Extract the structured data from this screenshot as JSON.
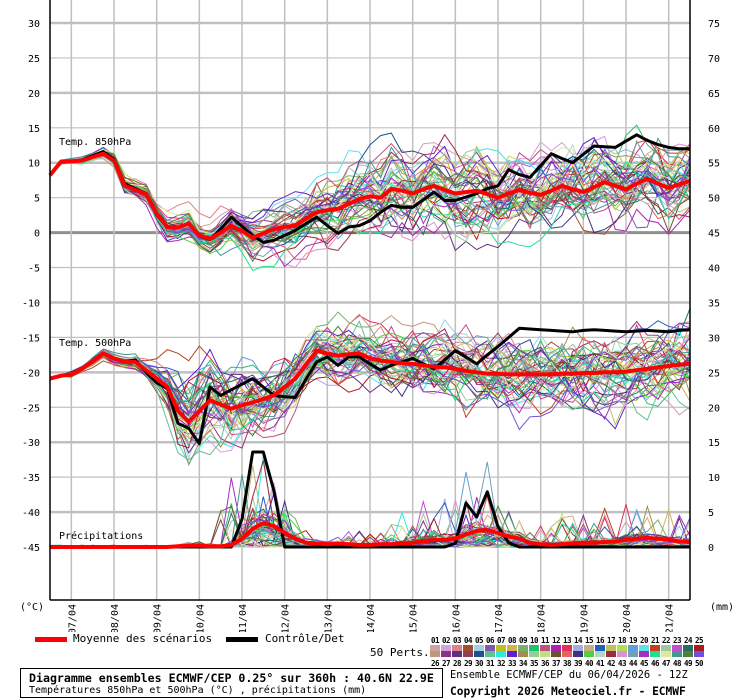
{
  "chart_data": {
    "type": "line",
    "title": "Diagramme ensembles ECMWF/CEP 0.25° sur 360h : 40.6N 22.9E",
    "subtitle": "Températures 850hPa et 500hPa (°C) , précipitations (mm)",
    "left_unit": "(°C)",
    "right_unit": "(mm)",
    "left_ylim": [
      -45,
      30
    ],
    "right_ylim": [
      0,
      75
    ],
    "left_ticks": [
      30,
      25,
      20,
      15,
      10,
      5,
      0,
      -5,
      -10,
      -15,
      -20,
      -25,
      -30,
      -35,
      -40,
      -45
    ],
    "right_ticks": [
      75,
      70,
      65,
      60,
      55,
      50,
      45,
      40,
      35,
      30,
      25,
      20,
      15,
      10,
      5,
      0
    ],
    "x_step_hours": 6,
    "x_range_hours": [
      0,
      360
    ],
    "x_tick_labels": [
      "07/04",
      "08/04",
      "09/04",
      "10/04",
      "11/04",
      "12/04",
      "13/04",
      "14/04",
      "15/04",
      "16/04",
      "17/04",
      "18/04",
      "19/04",
      "20/04",
      "21/04"
    ],
    "grid": true,
    "panels": [
      {
        "label": "Temp. 850hPa",
        "unit": "°C",
        "mean": [
          8.2,
          10.1,
          10.2,
          10.3,
          10.8,
          11.3,
          10.3,
          6.7,
          6.1,
          5.5,
          2.7,
          0.8,
          0.7,
          1.3,
          -0.4,
          -0.9,
          0,
          1,
          0.2,
          -0.7,
          -0.1,
          0.5,
          0.8,
          1,
          2,
          2.9,
          3.2,
          3.4,
          4.1,
          4.8,
          5.2,
          5,
          6.25,
          6,
          5.6,
          6.2,
          6.7,
          6.1,
          5.6,
          5.8,
          6,
          5.5,
          5,
          5.6,
          6.1,
          5.7,
          5.4,
          6,
          6.7,
          6.2,
          5.8,
          6.5,
          7.2,
          6.7,
          6.2,
          7,
          7.7,
          7,
          6.4,
          6.9,
          7.4
        ],
        "control": [
          8.2,
          10.1,
          10.2,
          10.4,
          11,
          11.6,
          10.5,
          7,
          6.3,
          5.6,
          2.5,
          0.8,
          0.7,
          1.3,
          -0.5,
          -1,
          0.5,
          2.2,
          0.9,
          -0.4,
          -1.4,
          -1.1,
          -0.4,
          0.3,
          1.3,
          2.2,
          1,
          -0.1,
          0.8,
          1,
          1.7,
          2.9,
          3.9,
          3.6,
          3.6,
          4.7,
          5.8,
          4.6,
          4.6,
          5.1,
          5.6,
          6.3,
          6.7,
          9,
          8.3,
          7.9,
          9.6,
          11.3,
          10.6,
          10,
          11.2,
          12.4,
          12.3,
          12.2,
          13.1,
          14,
          13.2,
          12.6,
          12.2,
          12,
          12
        ],
        "spread": [
          0.1,
          0.2,
          0.2,
          0.3,
          0.3,
          0.4,
          0.5,
          0.6,
          0.6,
          0.7,
          0.8,
          0.9,
          1,
          1.1,
          1.1,
          1.2,
          1.3,
          1.4,
          1.5,
          1.6,
          1.7,
          1.8,
          1.9,
          2,
          2.1,
          2.2,
          2.3,
          2.4,
          2.5,
          2.5,
          2.6,
          2.6,
          2.7,
          2.7,
          2.7,
          2.8
        ]
      },
      {
        "label": "Temp. 500hPa",
        "unit": "°C",
        "mean": [
          -20.9,
          -20.5,
          -20.3,
          -19.5,
          -18.4,
          -17.3,
          -18,
          -18.5,
          -18.5,
          -19.7,
          -20.9,
          -22.1,
          -25.5,
          -27.1,
          -25.5,
          -24,
          -24.6,
          -25.2,
          -24.7,
          -24.3,
          -23.8,
          -23.3,
          -22.1,
          -20.9,
          -18.9,
          -16.9,
          -17.3,
          -17.6,
          -17.4,
          -17.3,
          -18,
          -18.3,
          -18.5,
          -18.7,
          -18.8,
          -19,
          -19.2,
          -19.3,
          -19.5,
          -19.8,
          -20,
          -20.2,
          -20.2,
          -20.3,
          -20.3,
          -20.3,
          -20.3,
          -20.3,
          -20.2,
          -20.2,
          -20.1,
          -20.1,
          -20,
          -20,
          -19.9,
          -19.7,
          -19.5,
          -19.3,
          -19.1,
          -18.9,
          -18.8
        ],
        "control": [
          -20.9,
          -20.5,
          -20.3,
          -19.5,
          -18.4,
          -17.3,
          -18,
          -18.5,
          -18.2,
          -20,
          -21.5,
          -22.3,
          -27.3,
          -28,
          -30.2,
          -22.1,
          -23.3,
          -22.5,
          -21.7,
          -20.9,
          -22.1,
          -23.3,
          -23.5,
          -23.6,
          -21,
          -18.5,
          -17.8,
          -19,
          -17.8,
          -17.8,
          -18.8,
          -19.7,
          -19,
          -18.5,
          -18,
          -18.8,
          -19.5,
          -18.2,
          -16.9,
          -17.8,
          -18.8,
          -17.5,
          -16.3,
          -15,
          -13.7,
          -13.8,
          -13.9,
          -14,
          -14.1,
          -14.2,
          -14,
          -13.9,
          -14,
          -14.1,
          -14.2,
          -14.1,
          -14,
          -14.1,
          -14.2,
          -14,
          -13.9
        ],
        "spread": [
          0.1,
          0.1,
          0.2,
          0.2,
          0.3,
          0.3,
          0.4,
          0.4,
          0.5,
          0.6,
          1,
          1.5,
          2.5,
          3,
          3.2,
          3.2,
          3.2,
          3.2,
          3,
          3,
          2.8,
          2.6,
          2.4,
          2.2,
          2,
          2,
          2,
          2,
          2,
          2.1,
          2.1,
          2.2,
          2.2,
          2.3,
          2.3,
          2.4,
          2.4,
          2.5,
          2.5,
          2.6,
          2.6,
          2.7,
          2.7,
          2.8
        ]
      },
      {
        "label": "Précipitations",
        "unit": "mm",
        "mean": [
          0,
          0,
          0,
          0,
          0,
          0,
          0,
          0,
          0,
          0,
          0,
          0,
          0.1,
          0.2,
          0.2,
          0.1,
          0.1,
          0.3,
          1.2,
          2.6,
          3.4,
          3,
          2,
          1.2,
          0.6,
          0.5,
          0.4,
          0.5,
          0.4,
          0.3,
          0.3,
          0.4,
          0.4,
          0.5,
          0.6,
          0.8,
          1,
          1,
          1.2,
          1.8,
          2.3,
          2.4,
          2,
          1.5,
          1.2,
          0.6,
          0.4,
          0.3,
          0.4,
          0.5,
          0.6,
          0.6,
          0.7,
          0.8,
          1,
          1.2,
          1.3,
          1.2,
          1,
          0.8,
          0.7
        ],
        "control": [
          0,
          0,
          0,
          0,
          0,
          0,
          0,
          0,
          0,
          0,
          0,
          0,
          0,
          0,
          0,
          0,
          0,
          0,
          4,
          13.6,
          13.6,
          8,
          0,
          0,
          0,
          0,
          0,
          0,
          0,
          0,
          0,
          0,
          0,
          0,
          0,
          0,
          0,
          0,
          0.5,
          6.3,
          4.3,
          7.9,
          2.9,
          0.6,
          0,
          0,
          0,
          0,
          0,
          0,
          0,
          0,
          0,
          0,
          0,
          0,
          0,
          0,
          0,
          0,
          0
        ],
        "spread": [
          0.3,
          0.3,
          0.3,
          0.3,
          0.3,
          0.3,
          0.3,
          0.3,
          0.3,
          0.3,
          0.3,
          0.3,
          0.5,
          0.5,
          0.5,
          0.5,
          6,
          10,
          12,
          12,
          12,
          10,
          8,
          4,
          2,
          2,
          2,
          2,
          2,
          2,
          2,
          2,
          3,
          5,
          6,
          7,
          8,
          8,
          8,
          8,
          8,
          7,
          6,
          6,
          5,
          5,
          5,
          5,
          5,
          5,
          5,
          5,
          5,
          6,
          6,
          6,
          6,
          5,
          5,
          5,
          5
        ]
      }
    ],
    "legend": {
      "mean_label": "Moyenne des scénarios",
      "control_label": "Contrôle/Det",
      "perts_label": "50 Perts.",
      "mean_color": "#ff0000",
      "control_color": "#000000"
    },
    "members": [
      {
        "id": "01",
        "color": "#d0a0a8"
      },
      {
        "id": "02",
        "color": "#d0a0e0"
      },
      {
        "id": "03",
        "color": "#e08088"
      },
      {
        "id": "04",
        "color": "#a05030"
      },
      {
        "id": "05",
        "color": "#a0d0e8"
      },
      {
        "id": "06",
        "color": "#8058b0"
      },
      {
        "id": "07",
        "color": "#c0c020"
      },
      {
        "id": "08",
        "color": "#d8b050"
      },
      {
        "id": "09",
        "color": "#78b070"
      },
      {
        "id": "10",
        "color": "#20c070"
      },
      {
        "id": "11",
        "color": "#c05080"
      },
      {
        "id": "12",
        "color": "#b020b0"
      },
      {
        "id": "13",
        "color": "#e03060"
      },
      {
        "id": "14",
        "color": "#a0b0e0"
      },
      {
        "id": "15",
        "color": "#c8b080"
      },
      {
        "id": "16",
        "color": "#2060c0"
      },
      {
        "id": "17",
        "color": "#c0c060"
      },
      {
        "id": "18",
        "color": "#b0e050"
      },
      {
        "id": "19",
        "color": "#60a0d8"
      },
      {
        "id": "20",
        "color": "#60e0e8"
      },
      {
        "id": "21",
        "color": "#c04020"
      },
      {
        "id": "22",
        "color": "#a0c8a0"
      },
      {
        "id": "23",
        "color": "#c050d0"
      },
      {
        "id": "24",
        "color": "#207060"
      },
      {
        "id": "25",
        "color": "#b01820"
      },
      {
        "id": "26",
        "color": "#c09878"
      },
      {
        "id": "27",
        "color": "#903080"
      },
      {
        "id": "28",
        "color": "#603080"
      },
      {
        "id": "29",
        "color": "#904050"
      },
      {
        "id": "30",
        "color": "#205090"
      },
      {
        "id": "31",
        "color": "#60c090"
      },
      {
        "id": "32",
        "color": "#30e8e0"
      },
      {
        "id": "33",
        "color": "#6020d0"
      },
      {
        "id": "34",
        "color": "#a09050"
      },
      {
        "id": "35",
        "color": "#90d090"
      },
      {
        "id": "36",
        "color": "#c0e080"
      },
      {
        "id": "37",
        "color": "#705028"
      },
      {
        "id": "38",
        "color": "#e86060"
      },
      {
        "id": "39",
        "color": "#403080"
      },
      {
        "id": "40",
        "color": "#50d040"
      },
      {
        "id": "41",
        "color": "#b0d8c8"
      },
      {
        "id": "42",
        "color": "#a02840"
      },
      {
        "id": "43",
        "color": "#e090d0"
      },
      {
        "id": "44",
        "color": "#70a0b8"
      },
      {
        "id": "45",
        "color": "#a030c0"
      },
      {
        "id": "46",
        "color": "#20e090"
      },
      {
        "id": "47",
        "color": "#e0e8a0"
      },
      {
        "id": "48",
        "color": "#409890"
      },
      {
        "id": "49",
        "color": "#508040"
      },
      {
        "id": "50",
        "color": "#7050e0"
      }
    ]
  },
  "footer": {
    "title": "Diagramme ensembles ECMWF/CEP 0.25° sur 360h : 40.6N 22.9E",
    "subtitle": "Températures 850hPa et 500hPa (°C) , précipitations (mm)",
    "run": "Ensemble ECMWF/CEP du 06/04/2026 - 12Z",
    "copyright": "Copyright 2026 Meteociel.fr - ECMWF"
  }
}
